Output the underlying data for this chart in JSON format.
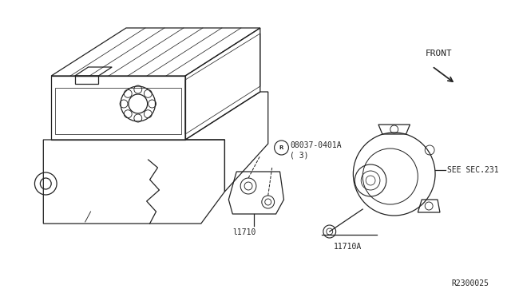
{
  "bg_color": "#ffffff",
  "line_color": "#222222",
  "labels": {
    "part_code": "08037-0401A",
    "part_qty": "( 3)",
    "part1": "l1710",
    "part2": "11710A",
    "see_sec": "SEE SEC.231",
    "front": "FRONT",
    "ref_code": "R2300025"
  },
  "font_size_labels": 7,
  "font_size_ref": 7,
  "lw": 0.9
}
